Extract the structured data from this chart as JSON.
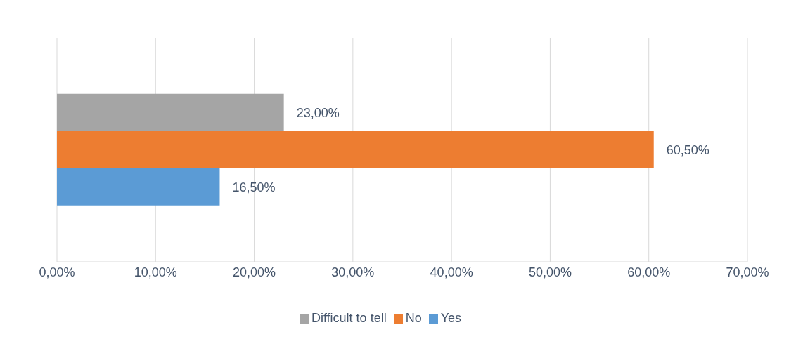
{
  "chart_data": {
    "type": "bar",
    "orientation": "horizontal",
    "categories": [
      null
    ],
    "series": [
      {
        "name": "Difficult to tell",
        "color": "#a5a5a5",
        "values": [
          23.0
        ],
        "value_labels": [
          "23,00%"
        ]
      },
      {
        "name": "No",
        "color": "#ed7d31",
        "values": [
          60.5
        ],
        "value_labels": [
          "60,50%"
        ]
      },
      {
        "name": "Yes",
        "color": "#5b9bd5",
        "values": [
          16.5
        ],
        "value_labels": [
          "16,50%"
        ]
      }
    ],
    "xlim": [
      0,
      70
    ],
    "xticks": [
      {
        "value": 0,
        "label": "0,00%"
      },
      {
        "value": 10,
        "label": "10,00%"
      },
      {
        "value": 20,
        "label": "20,00%"
      },
      {
        "value": 30,
        "label": "30,00%"
      },
      {
        "value": 40,
        "label": "40,00%"
      },
      {
        "value": 50,
        "label": "50,00%"
      },
      {
        "value": 60,
        "label": "60,00%"
      },
      {
        "value": 70,
        "label": "70,00%"
      }
    ],
    "grid": "x",
    "legend": "bottom"
  }
}
